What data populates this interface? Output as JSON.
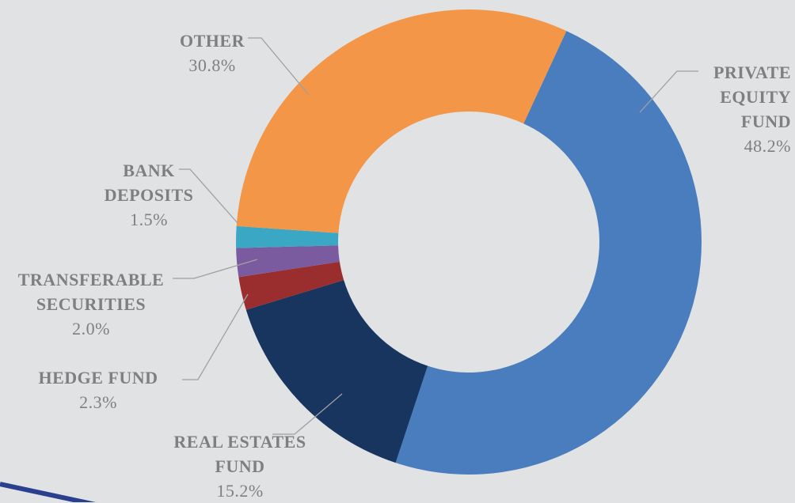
{
  "chart_data": {
    "type": "donut",
    "categories": [
      "PRIVATE EQUITY FUND",
      "REAL ESTATES FUND",
      "HEDGE FUND",
      "TRANSFERABLE SECURITIES",
      "BANK DEPOSITS",
      "OTHER"
    ],
    "values": [
      48.2,
      15.2,
      2.3,
      2.0,
      1.5,
      30.8
    ],
    "value_labels": [
      "48.2%",
      "15.2%",
      "2.3%",
      "2.0%",
      "1.5%",
      "30.8%"
    ],
    "colors": [
      "#4a7dbe",
      "#17355e",
      "#9a2d2d",
      "#7a5b9f",
      "#3aa8c4",
      "#f39647"
    ]
  }
}
